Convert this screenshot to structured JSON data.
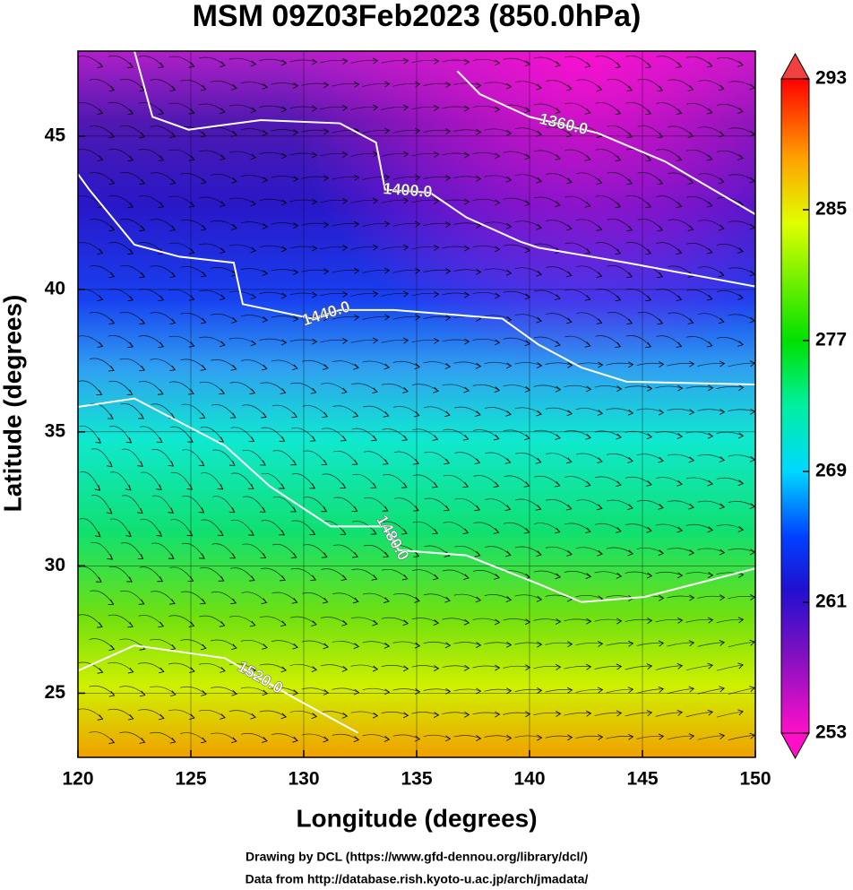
{
  "chart_data": {
    "type": "contour",
    "title": "MSM 09Z03Feb2023 (850.0hPa)",
    "xlabel": "Longitude (degrees)",
    "ylabel": "Latitude  (degrees)",
    "projection": "mercator",
    "xlim": [
      120,
      150
    ],
    "ylim": [
      22.4,
      47.6
    ],
    "xticks": [
      120,
      125,
      130,
      135,
      140,
      145,
      150
    ],
    "yticks": [
      25,
      30,
      35,
      40,
      45
    ],
    "grid": true,
    "colorbar": {
      "lim": [
        253,
        293
      ],
      "ticks": [
        253,
        261,
        269,
        277,
        285,
        293
      ]
    },
    "contours": [
      {
        "label": "1360.0",
        "x": [
          136.8,
          137.8,
          140,
          143,
          146,
          150
        ],
        "y": [
          47.0,
          46.3,
          45.6,
          45.1,
          44.2,
          42.5
        ]
      },
      {
        "label": "1400.0",
        "x": [
          122.5,
          123.3,
          124.9,
          128.1,
          131.6,
          133.2,
          133.6,
          135.6,
          137.2,
          139.6,
          140.4,
          144.3,
          150
        ],
        "y": [
          47.6,
          45.6,
          45.2,
          45.5,
          45.4,
          44.8,
          43.3,
          43.2,
          42.4,
          41.6,
          41.4,
          40.9,
          40.1
        ]
      },
      {
        "label": "1440.0",
        "x": [
          120,
          120.5,
          122.5,
          124.5,
          126.9,
          127.3,
          130.4,
          131.6,
          134,
          138.8,
          140.4,
          142.3,
          144.3,
          150
        ],
        "y": [
          43.8,
          43.3,
          41.5,
          41.1,
          40.9,
          39.5,
          39.0,
          39.3,
          39.3,
          39.0,
          38.1,
          37.3,
          36.8,
          36.7
        ]
      },
      {
        "label": "1480.0",
        "x": [
          120,
          122.5,
          126.5,
          128.5,
          131.2,
          133.6,
          134.2,
          137.2,
          140.4,
          142.3,
          145.1,
          150
        ],
        "y": [
          35.9,
          36.2,
          34.5,
          33.0,
          31.5,
          31.5,
          30.6,
          30.4,
          29.3,
          28.6,
          28.8,
          29.9
        ]
      },
      {
        "label": "1520.0",
        "x": [
          120,
          122.5,
          126.5,
          129.6,
          132.4
        ],
        "y": [
          25.9,
          26.9,
          26.4,
          24.8,
          23.4
        ]
      }
    ]
  },
  "footer": [
    "Drawing by DCL (https://www.gfd-dennou.org/library/dcl/)",
    "Data from http://database.rish.kyoto-u.ac.jp/arch/jmadata/"
  ]
}
